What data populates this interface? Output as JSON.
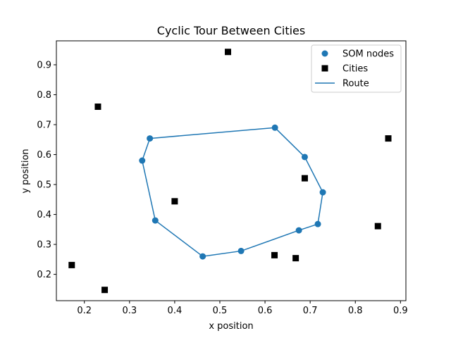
{
  "chart_data": {
    "type": "scatter",
    "title": "Cyclic Tour Between Cities",
    "xlabel": "x position",
    "ylabel": "y position",
    "xlim": [
      0.138,
      0.912
    ],
    "ylim": [
      0.112,
      0.98
    ],
    "xticks": [
      0.2,
      0.3,
      0.4,
      0.5,
      0.6,
      0.7,
      0.8,
      0.9
    ],
    "yticks": [
      0.2,
      0.3,
      0.4,
      0.5,
      0.6,
      0.7,
      0.8,
      0.9
    ],
    "grid": false,
    "legend_position": "upper-right",
    "series": [
      {
        "name": "SOM nodes",
        "marker": "circle",
        "color": "#1f77b4",
        "x": [
          0.622,
          0.688,
          0.728,
          0.717,
          0.675,
          0.547,
          0.462,
          0.357,
          0.328,
          0.345
        ],
        "y": [
          0.69,
          0.592,
          0.474,
          0.368,
          0.347,
          0.278,
          0.26,
          0.38,
          0.58,
          0.654
        ]
      },
      {
        "name": "Cities",
        "marker": "square",
        "color": "#000000",
        "x": [
          0.518,
          0.23,
          0.873,
          0.688,
          0.4,
          0.85,
          0.621,
          0.668,
          0.172,
          0.245
        ],
        "y": [
          0.943,
          0.76,
          0.654,
          0.521,
          0.444,
          0.361,
          0.264,
          0.254,
          0.231,
          0.148
        ]
      },
      {
        "name": "Route",
        "marker": "line",
        "color": "#1f77b4",
        "closed": true,
        "x": [
          0.622,
          0.688,
          0.728,
          0.717,
          0.675,
          0.547,
          0.462,
          0.357,
          0.328,
          0.345
        ],
        "y": [
          0.69,
          0.592,
          0.474,
          0.368,
          0.347,
          0.278,
          0.26,
          0.38,
          0.58,
          0.654
        ]
      }
    ]
  }
}
